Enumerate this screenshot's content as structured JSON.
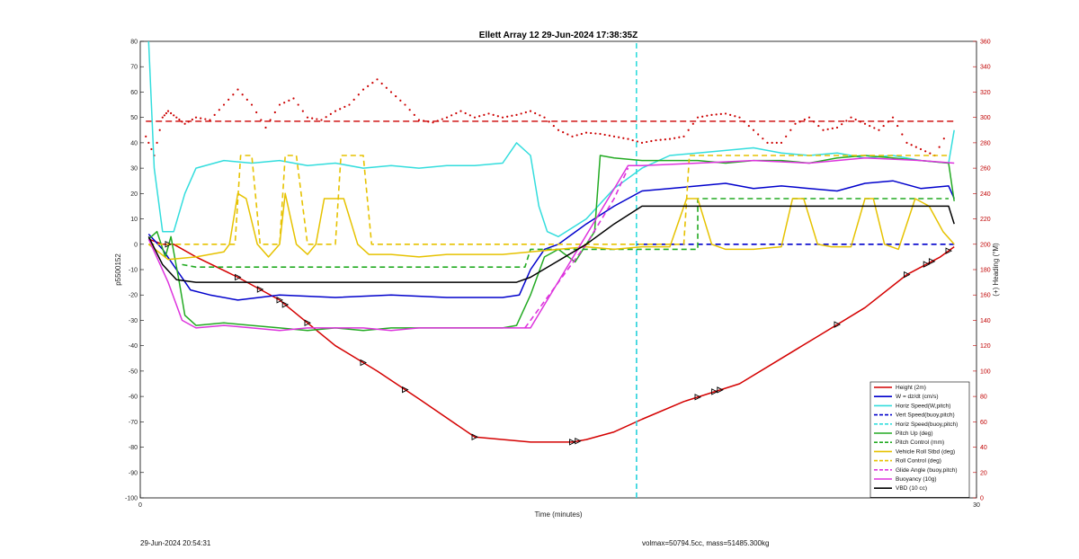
{
  "footer": {
    "left": "29-Jun-2024 20:54:31",
    "right": "volmax=50794.5cc, mass=51485.300kg"
  },
  "colors": {
    "red": "#d40000",
    "blue": "#0000cc",
    "cyan": "#33dddd",
    "green": "#22aa22",
    "gold": "#e6c200",
    "magenta": "#dd33dd",
    "black": "#000000",
    "heading": "#cc0000"
  },
  "chart_data": {
    "type": "line",
    "title": "Ellett Array 12 29-Jun-2024 17:38:35Z",
    "xlabel": "Time (minutes)",
    "ylabel": "p5500152",
    "y2label": "(+) Heading (°M)",
    "xlim": [
      0,
      30
    ],
    "ylim": [
      -100,
      80
    ],
    "y2lim": [
      0,
      360
    ],
    "x_ticks": [
      "0",
      "30"
    ],
    "y_ticks": [
      "80",
      "70",
      "60",
      "50",
      "40",
      "30",
      "20",
      "10",
      "0",
      "-10",
      "-20",
      "-30",
      "-40",
      "-50",
      "-60",
      "-70",
      "-80",
      "-90",
      "-100"
    ],
    "y2_ticks": [
      "360",
      "340",
      "320",
      "300",
      "280",
      "260",
      "240",
      "220",
      "200",
      "180",
      "160",
      "140",
      "120",
      "100",
      "80",
      "60",
      "40",
      "20",
      "0"
    ],
    "grid": false,
    "legend_position": "bottom-right",
    "series": [
      {
        "name": "Height (2m)",
        "color": "#d40000",
        "style": "solid",
        "x": [
          0.3,
          0.8,
          1.2,
          2.0,
          3.5,
          5.0,
          7.0,
          8.5,
          10.0,
          12.0,
          14.0,
          15.5,
          16.0,
          17.0,
          18.0,
          19.5,
          21.5,
          23.0,
          24.5,
          26.0,
          27.5,
          28.7,
          29.2
        ],
        "y": [
          2,
          0,
          0,
          -5,
          -13,
          -22,
          -40,
          -50,
          -61,
          -76,
          -78,
          -78,
          -77,
          -74,
          -69,
          -62,
          -55,
          -45,
          -35,
          -25,
          -12,
          -5,
          -1
        ]
      },
      {
        "name": "W = dz/dt (cm/s)",
        "color": "#0000cc",
        "style": "solid",
        "x": [
          0.3,
          0.8,
          1.3,
          1.8,
          2.5,
          3.5,
          5.0,
          7.0,
          9.0,
          11.0,
          13.0,
          13.6,
          14.0,
          14.5,
          15.0,
          16.0,
          17.0,
          18.0,
          19.0,
          20.0,
          21.0,
          22.0,
          23.0,
          24.0,
          25.0,
          26.0,
          27.0,
          28.0,
          29.0,
          29.2
        ],
        "y": [
          4,
          -2,
          -10,
          -18,
          -20,
          -22,
          -20,
          -21,
          -20,
          -21,
          -21,
          -20,
          -10,
          -2,
          0,
          8,
          15,
          21,
          22,
          23,
          24,
          22,
          23,
          22,
          21,
          24,
          25,
          22,
          23,
          18
        ]
      },
      {
        "name": "Horiz Speed(W,pitch)",
        "color": "#33dddd",
        "style": "solid",
        "x": [
          0.3,
          0.5,
          0.8,
          1.2,
          1.6,
          2.0,
          3.0,
          4.0,
          5.0,
          6.0,
          7.0,
          8.0,
          9.0,
          10.0,
          11.0,
          12.0,
          13.0,
          13.5,
          14.0,
          14.3,
          14.6,
          15.0,
          16.0,
          17.0,
          18.0,
          19.0,
          20.0,
          21.0,
          22.0,
          23.0,
          24.0,
          25.0,
          26.0,
          27.0,
          28.0,
          29.0,
          29.2
        ],
        "y": [
          80,
          30,
          5,
          5,
          20,
          30,
          33,
          32,
          33,
          31,
          32,
          30,
          31,
          30,
          31,
          31,
          32,
          40,
          35,
          15,
          5,
          3,
          10,
          22,
          30,
          35,
          36,
          37,
          38,
          36,
          35,
          36,
          34,
          35,
          33,
          32,
          45
        ]
      },
      {
        "name": "Vert Speed(buoy,pitch)",
        "color": "#0000cc",
        "style": "dashed",
        "x": [
          17.8,
          17.8,
          17.8,
          20.0,
          25.0,
          29.2
        ],
        "y": [
          -100,
          -35,
          0,
          0,
          0,
          0
        ]
      },
      {
        "name": "Horiz Speed(buoy,pitch)",
        "color": "#33dddd",
        "style": "dashed",
        "x": [
          17.8,
          17.8
        ],
        "y": [
          -100,
          80
        ]
      },
      {
        "name": "Pitch Up (deg)",
        "color": "#22aa22",
        "style": "solid",
        "x": [
          0.3,
          0.6,
          0.9,
          1.1,
          1.4,
          1.6,
          2.0,
          3.0,
          4.0,
          5.0,
          6.0,
          7.0,
          8.0,
          9.0,
          10.0,
          11.0,
          12.0,
          13.0,
          13.5,
          14.0,
          14.5,
          15.0,
          15.6,
          16.0,
          16.3,
          16.5,
          17.0,
          18.0,
          19.0,
          20.0,
          21.0,
          22.0,
          23.0,
          24.0,
          25.0,
          26.0,
          27.0,
          28.0,
          29.0,
          29.2
        ],
        "y": [
          2,
          5,
          -5,
          3,
          -15,
          -28,
          -32,
          -31,
          -32,
          -33,
          -34,
          -33,
          -34,
          -33,
          -33,
          -33,
          -33,
          -33,
          -32,
          -20,
          -5,
          -2,
          -7,
          0,
          5,
          35,
          34,
          33,
          33,
          33,
          32,
          33,
          33,
          32,
          34,
          35,
          34,
          33,
          32,
          17
        ]
      },
      {
        "name": "Pitch Control (mm)",
        "color": "#22aa22",
        "style": "dashed",
        "x": [
          1.5,
          2.0,
          13.8,
          14.0,
          18.0,
          20.0,
          20.0,
          29.0
        ],
        "y": [
          -8,
          -9,
          -9,
          -2,
          -2,
          -2,
          18,
          18
        ]
      },
      {
        "name": "Vehicle Roll Stbd (deg)",
        "color": "#e6c200",
        "style": "solid",
        "x": [
          0.3,
          1.0,
          2.0,
          3.0,
          3.2,
          3.5,
          3.8,
          4.2,
          4.6,
          5.0,
          5.2,
          5.6,
          6.0,
          6.3,
          6.6,
          7.0,
          7.3,
          7.8,
          8.2,
          9.0,
          10.0,
          11.0,
          12.0,
          13.0,
          14.0,
          15.0,
          16.0,
          17.0,
          18.0,
          19.0,
          19.6,
          20.0,
          20.5,
          21.0,
          22.0,
          23.0,
          23.4,
          23.8,
          24.3,
          24.8,
          25.5,
          26.0,
          26.3,
          26.7,
          27.2,
          27.8,
          28.3,
          28.8,
          29.2
        ],
        "y": [
          0,
          -6,
          -5,
          -3,
          0,
          20,
          18,
          0,
          -5,
          0,
          20,
          0,
          -4,
          0,
          18,
          18,
          18,
          0,
          -4,
          -4,
          -5,
          -4,
          -4,
          -4,
          -3,
          -2,
          -1,
          -2,
          -1,
          -1,
          18,
          18,
          0,
          -2,
          -2,
          -1,
          18,
          18,
          0,
          -1,
          -1,
          18,
          18,
          0,
          -2,
          18,
          15,
          5,
          0
        ]
      },
      {
        "name": "Roll Control (deg)",
        "color": "#e6c200",
        "style": "dashed",
        "x": [
          0.3,
          3.0,
          3.4,
          3.6,
          4.0,
          4.3,
          5.0,
          5.2,
          5.6,
          6.0,
          7.0,
          7.2,
          8.0,
          8.3,
          9.0,
          14.0,
          18.0,
          19.5,
          19.7,
          20.0,
          23.0,
          23.2,
          26.0,
          26.2,
          29.0
        ],
        "y": [
          0,
          0,
          0,
          35,
          35,
          0,
          0,
          35,
          35,
          0,
          0,
          35,
          35,
          0,
          0,
          0,
          0,
          0,
          35,
          35,
          35,
          35,
          35,
          35,
          35
        ]
      },
      {
        "name": "Glide Angle (buoy,pitch)",
        "color": "#dd33dd",
        "style": "dashed",
        "x": [
          13.8,
          15.0,
          16.0,
          17.0,
          17.5
        ],
        "y": [
          -33,
          -15,
          0,
          18,
          30
        ]
      },
      {
        "name": "Buoyancy (10g)",
        "color": "#dd33dd",
        "style": "solid",
        "x": [
          0.3,
          1.0,
          1.5,
          2.0,
          3.0,
          4.0,
          5.0,
          6.0,
          7.0,
          8.0,
          9.0,
          10.0,
          11.0,
          12.0,
          13.0,
          13.5,
          14.0,
          17.5,
          18.0,
          20.0,
          22.0,
          24.0,
          26.0,
          28.0,
          29.2
        ],
        "y": [
          2,
          -15,
          -30,
          -33,
          -32,
          -33,
          -34,
          -33,
          -33,
          -33,
          -34,
          -33,
          -33,
          -33,
          -33,
          -33,
          -33,
          31,
          31,
          32,
          33,
          32,
          34,
          33,
          32
        ]
      },
      {
        "name": "VBD (10 cc)",
        "color": "#000000",
        "style": "solid",
        "x": [
          0.3,
          0.8,
          1.3,
          2.0,
          13.5,
          14.0,
          16.0,
          17.0,
          18.0,
          29.0,
          29.2
        ],
        "y": [
          3,
          -8,
          -14,
          -15,
          -15,
          -13,
          0,
          8,
          15,
          15,
          8
        ]
      }
    ],
    "heading": {
      "name": "(+) Heading (°M)",
      "color": "#cc0000",
      "axis": "right",
      "style": "dotted",
      "reference": 297,
      "x": [
        0.2,
        0.5,
        0.8,
        1.0,
        1.3,
        1.6,
        2.0,
        2.5,
        3.0,
        3.5,
        4.0,
        4.5,
        5.0,
        5.5,
        6.0,
        6.5,
        7.0,
        7.5,
        8.0,
        8.5,
        9.0,
        9.5,
        10.0,
        10.5,
        11.0,
        11.5,
        12.0,
        12.5,
        13.0,
        13.5,
        14.0,
        14.5,
        15.0,
        15.5,
        16.0,
        16.5,
        17.0,
        17.5,
        18.0,
        18.5,
        19.0,
        19.5,
        20.0,
        20.5,
        21.0,
        21.5,
        22.0,
        22.5,
        23.0,
        23.5,
        24.0,
        24.5,
        25.0,
        25.5,
        26.0,
        26.5,
        27.0,
        27.5,
        28.0,
        28.5,
        29.0
      ],
      "y": [
        285,
        270,
        300,
        305,
        300,
        295,
        300,
        298,
        310,
        322,
        310,
        292,
        310,
        315,
        300,
        298,
        305,
        310,
        322,
        330,
        320,
        310,
        298,
        296,
        300,
        305,
        300,
        303,
        300,
        302,
        305,
        300,
        290,
        285,
        288,
        287,
        285,
        283,
        280,
        282,
        283,
        285,
        300,
        302,
        303,
        300,
        290,
        280,
        280,
        295,
        300,
        290,
        292,
        300,
        295,
        290,
        300,
        280,
        275,
        270,
        290
      ]
    },
    "markers": {
      "shape": "triangle",
      "on_series": "Height (2m)",
      "x": [
        1.0,
        3.5,
        4.3,
        5.0,
        5.2,
        6.0,
        8.0,
        9.5,
        12.0,
        15.5,
        15.7,
        20.0,
        20.6,
        20.8,
        25.0,
        27.5,
        28.2,
        28.4,
        29.0
      ]
    }
  }
}
